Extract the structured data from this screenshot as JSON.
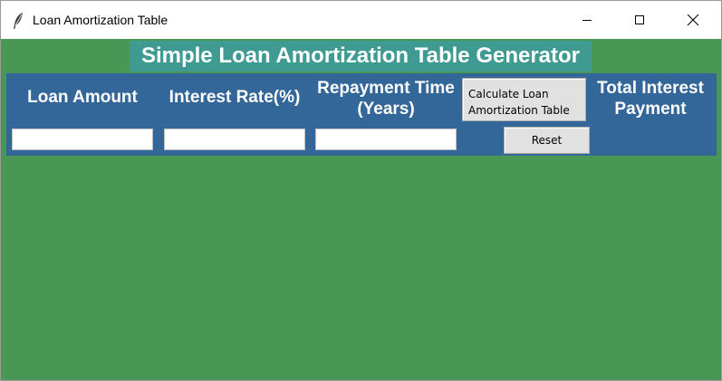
{
  "window": {
    "title": "Loan Amortization Table",
    "icon": "feather-icon",
    "controls": [
      "minimize-icon",
      "maximize-icon",
      "close-icon"
    ]
  },
  "app": {
    "heading": "Simple Loan Amortization Table Generator",
    "colors": {
      "background": "#4a9655",
      "heading_bg": "#3f9a91",
      "panel_bg": "#336699",
      "label_text": "#ffffff",
      "button_bg": "#e1e1e1"
    }
  },
  "form": {
    "loan_amount_label": "Loan Amount",
    "interest_rate_label": "Interest Rate(%)",
    "repayment_time_label": "Repayment Time\n(Years)",
    "total_interest_label": "Total Interest\nPayment",
    "loan_amount_value": "",
    "interest_rate_value": "",
    "repayment_time_value": "",
    "calculate_button_label": "Calculate Loan\nAmortization Table",
    "reset_button_label": "Reset"
  }
}
